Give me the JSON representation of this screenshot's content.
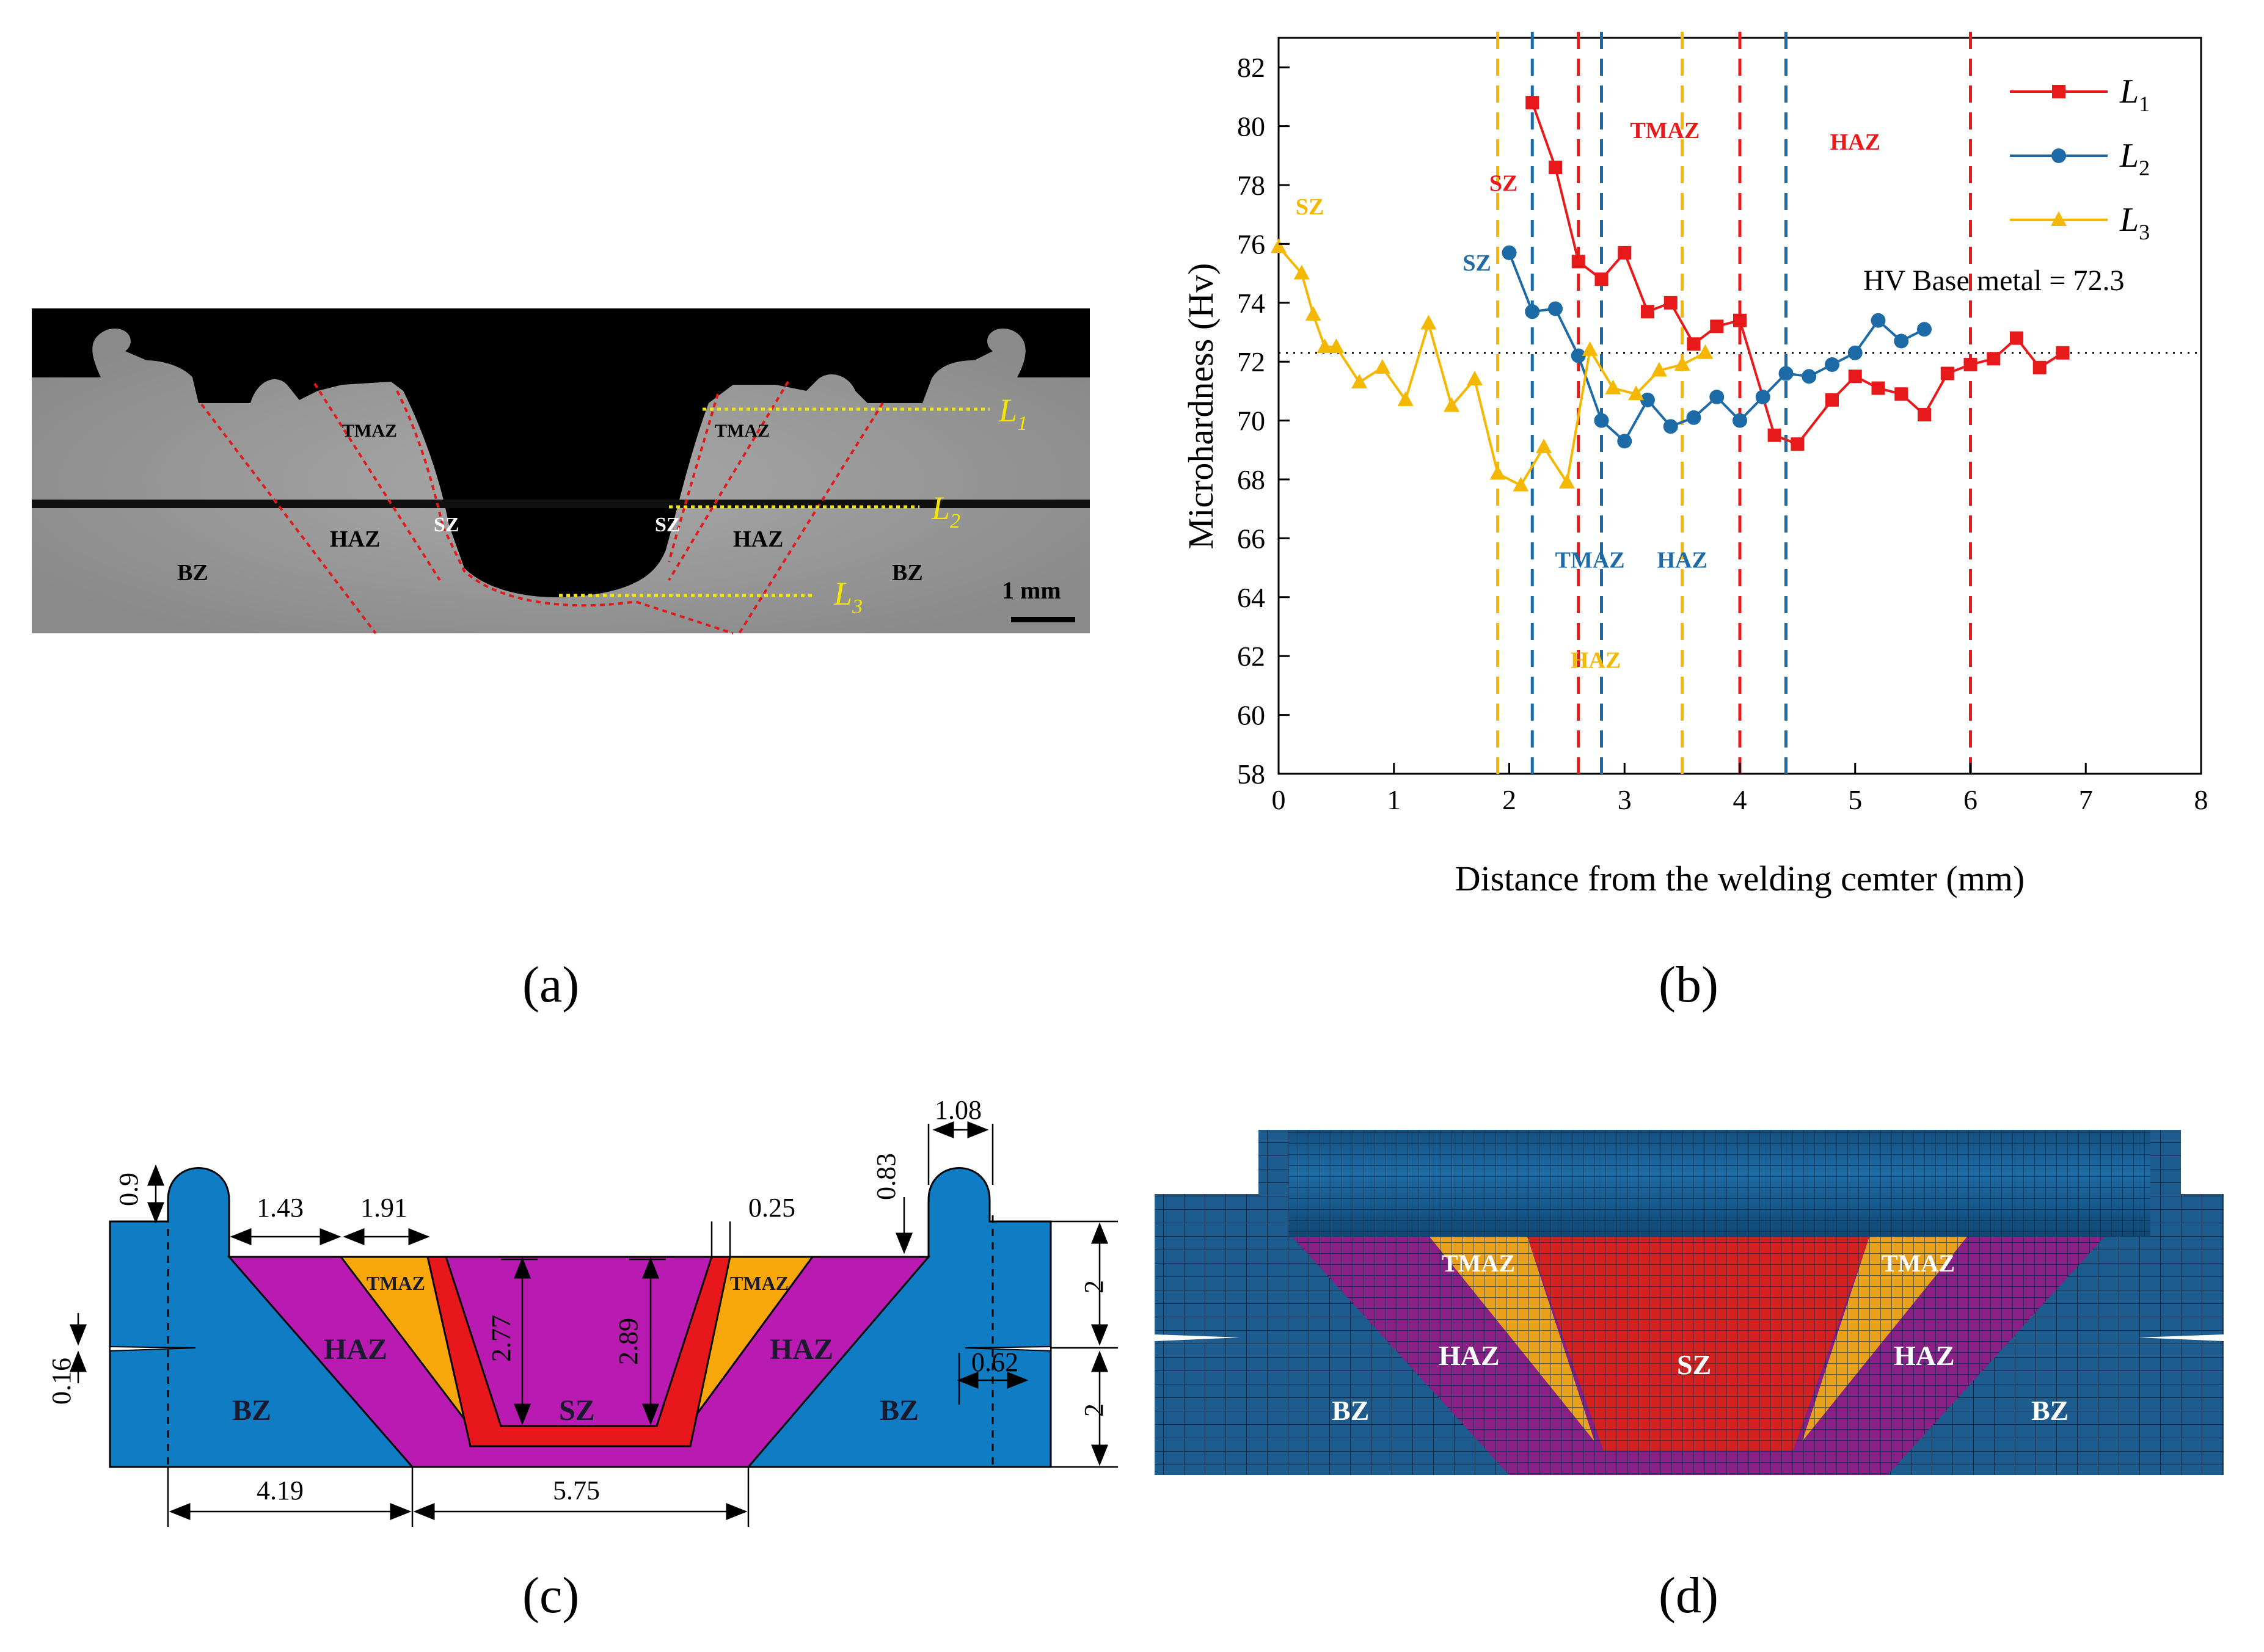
{
  "captions": {
    "a": "(a)",
    "b": "(b)",
    "c": "(c)",
    "d": "(d)"
  },
  "panel_a": {
    "zones": [
      "BZ",
      "HAZ",
      "TMAZ",
      "SZ",
      "SZ",
      "TMAZ",
      "HAZ",
      "BZ"
    ],
    "lines": [
      "L",
      "L",
      "L"
    ],
    "line_subs": [
      "1",
      "2",
      "3"
    ],
    "scale_bar": "1 mm"
  },
  "chart_data": {
    "type": "line",
    "title": "",
    "xlabel": "Distance from the welding cemter (mm)",
    "ylabel": "Microhardness (Hv)",
    "xlim": [
      0,
      8
    ],
    "ylim": [
      58,
      83
    ],
    "xticks": [
      0,
      1,
      2,
      3,
      4,
      5,
      6,
      7,
      8
    ],
    "yticks": [
      58,
      60,
      62,
      64,
      66,
      68,
      70,
      72,
      74,
      76,
      78,
      80,
      82
    ],
    "legend_position": "top-right",
    "series": [
      {
        "name": "L1",
        "label_main": "L",
        "label_sub": "1",
        "marker": "square",
        "color": "#e8191b",
        "x": [
          2.2,
          2.4,
          2.6,
          2.8,
          3.0,
          3.2,
          3.4,
          3.6,
          3.8,
          4.0,
          4.3,
          4.5,
          4.8,
          5.0,
          5.2,
          5.4,
          5.6,
          5.8,
          6.0,
          6.2,
          6.4,
          6.6,
          6.8
        ],
        "y": [
          80.8,
          78.6,
          75.4,
          74.8,
          75.7,
          73.7,
          74.0,
          72.6,
          73.2,
          73.4,
          69.5,
          69.2,
          70.7,
          71.5,
          71.1,
          70.9,
          70.2,
          71.6,
          71.9,
          72.1,
          72.8,
          71.8,
          72.3
        ]
      },
      {
        "name": "L2",
        "label_main": "L",
        "label_sub": "2",
        "marker": "circle",
        "color": "#1c6aa6",
        "x": [
          2.0,
          2.2,
          2.4,
          2.6,
          2.8,
          3.0,
          3.2,
          3.4,
          3.6,
          3.8,
          4.0,
          4.2,
          4.4,
          4.6,
          4.8,
          5.0,
          5.2,
          5.4,
          5.6
        ],
        "y": [
          75.7,
          73.7,
          73.8,
          72.2,
          70.0,
          69.3,
          70.7,
          69.8,
          70.1,
          70.8,
          70.0,
          70.8,
          71.6,
          71.5,
          71.9,
          72.3,
          73.4,
          72.7,
          73.1
        ]
      },
      {
        "name": "L3",
        "label_main": "L",
        "label_sub": "3",
        "marker": "triangle",
        "color": "#f5b800",
        "x": [
          0.0,
          0.2,
          0.3,
          0.4,
          0.5,
          0.7,
          0.9,
          1.1,
          1.3,
          1.5,
          1.7,
          1.9,
          2.1,
          2.3,
          2.5,
          2.7,
          2.9,
          3.1,
          3.3,
          3.5,
          3.7
        ],
        "y": [
          75.9,
          75.0,
          73.6,
          72.5,
          72.5,
          71.3,
          71.8,
          70.7,
          73.3,
          70.5,
          71.4,
          68.2,
          67.8,
          69.1,
          67.9,
          72.4,
          71.1,
          70.9,
          71.7,
          71.9,
          72.3
        ]
      }
    ],
    "reference_line": {
      "value": 72.3,
      "label": "HV Base metal = 72.3"
    },
    "boundaries": [
      {
        "x": 1.9,
        "color": "#f5b800"
      },
      {
        "x": 2.2,
        "color": "#1c6aa6"
      },
      {
        "x": 2.6,
        "color": "#e8191b"
      },
      {
        "x": 2.8,
        "color": "#1c6aa6"
      },
      {
        "x": 3.5,
        "color": "#f5b800"
      },
      {
        "x": 4.0,
        "color": "#e8191b"
      },
      {
        "x": 4.4,
        "color": "#1c6aa6"
      },
      {
        "x": 6.0,
        "color": "#e8191b"
      }
    ],
    "annotations": [
      {
        "text": "SZ",
        "x": 0.27,
        "y": 77.0,
        "color": "#f5b800"
      },
      {
        "text": "SZ",
        "x": 1.95,
        "y": 77.8,
        "color": "#e8191b"
      },
      {
        "text": "SZ",
        "x": 1.72,
        "y": 75.1,
        "color": "#1c6aa6"
      },
      {
        "text": "TMAZ",
        "x": 3.35,
        "y": 79.6,
        "color": "#e8191b"
      },
      {
        "text": "HAZ",
        "x": 5.0,
        "y": 79.2,
        "color": "#e8191b"
      },
      {
        "text": "TMAZ",
        "x": 2.7,
        "y": 65.0,
        "color": "#1c6aa6"
      },
      {
        "text": "HAZ",
        "x": 3.5,
        "y": 65.0,
        "color": "#1c6aa6"
      },
      {
        "text": "HAZ",
        "x": 2.75,
        "y": 61.6,
        "color": "#f5b800"
      }
    ]
  },
  "panel_c": {
    "dims": [
      "0.9",
      "1.43",
      "1.91",
      "2.77",
      "2.89",
      "0.25",
      "0.83",
      "1.08",
      "2",
      "2",
      "0.16",
      "0.62",
      "4.19",
      "5.75"
    ],
    "zones": [
      "TMAZ",
      "HAZ",
      "BZ",
      "SZ",
      "TMAZ",
      "HAZ",
      "BZ"
    ]
  },
  "panel_d": {
    "zones": [
      "TMAZ",
      "TMAZ",
      "HAZ",
      "HAZ",
      "SZ",
      "BZ",
      "BZ"
    ]
  }
}
